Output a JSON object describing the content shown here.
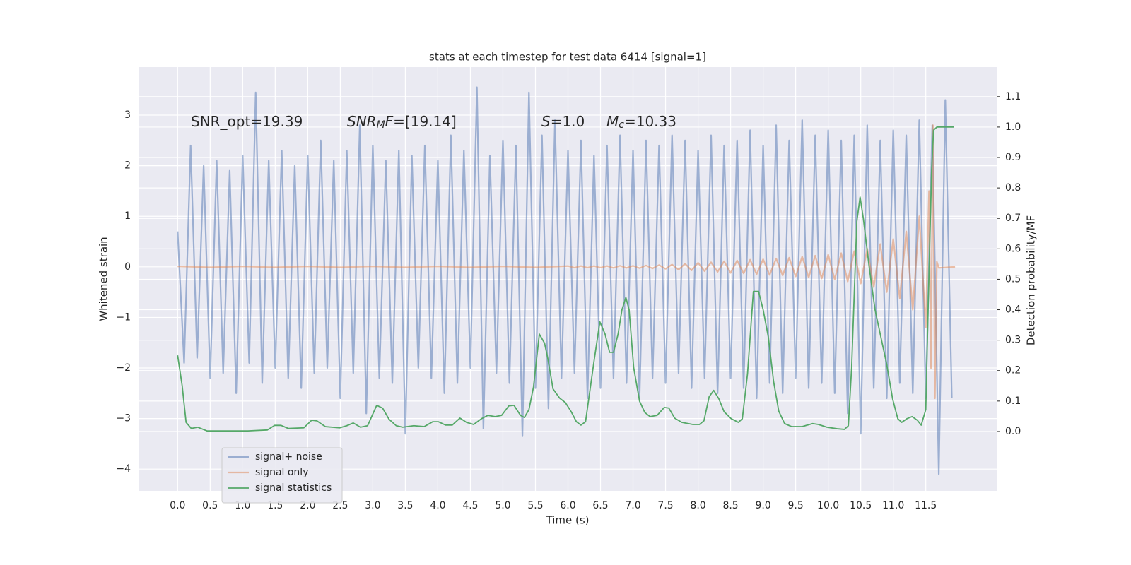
{
  "chart_data": {
    "type": "line",
    "title": "stats at each timestep for test data 6414 [signal=1]",
    "xlabel": "Time (s)",
    "ylabel": "Whitened strain",
    "y2label": "Detection probability/MF",
    "grid": true,
    "legend": "lower left",
    "annotations": [
      [
        {
          "text": "SNR_opt=19.39"
        }
      ],
      [
        {
          "text": "SNR",
          "italic": true
        },
        {
          "text": "M",
          "italic": true,
          "sub": true
        },
        {
          "text": "F",
          "italic": true
        },
        {
          "text": "=[19.14]"
        }
      ],
      [
        {
          "text": "S",
          "italic": true
        },
        {
          "text": "=1.0"
        }
      ],
      [
        {
          "text": "M",
          "italic": true
        },
        {
          "text": "c",
          "italic": true,
          "sub": true
        },
        {
          "text": "=10.33"
        }
      ]
    ],
    "xlim": [
      -0.59,
      12.59
    ],
    "ylim": [
      -4.43,
      3.95
    ],
    "y2lim": [
      -0.195,
      1.197
    ],
    "xticks": [
      {
        "value": 0,
        "label": "0.0"
      },
      {
        "value": 0.5,
        "label": "0.5"
      },
      {
        "value": 1,
        "label": "1.0"
      },
      {
        "value": 1.5,
        "label": "1.5"
      },
      {
        "value": 2,
        "label": "2.0"
      },
      {
        "value": 2.5,
        "label": "2.5"
      },
      {
        "value": 3,
        "label": "3.0"
      },
      {
        "value": 3.5,
        "label": "3.5"
      },
      {
        "value": 4,
        "label": "4.0"
      },
      {
        "value": 4.5,
        "label": "4.5"
      },
      {
        "value": 5,
        "label": "5.0"
      },
      {
        "value": 5.5,
        "label": "5.5"
      },
      {
        "value": 6,
        "label": "6.0"
      },
      {
        "value": 6.5,
        "label": "6.5"
      },
      {
        "value": 7,
        "label": "7.0"
      },
      {
        "value": 7.5,
        "label": "7.5"
      },
      {
        "value": 8,
        "label": "8.0"
      },
      {
        "value": 8.5,
        "label": "8.5"
      },
      {
        "value": 9,
        "label": "9.0"
      },
      {
        "value": 9.5,
        "label": "9.5"
      },
      {
        "value": 10,
        "label": "10.0"
      },
      {
        "value": 10.5,
        "label": "10.5"
      },
      {
        "value": 11,
        "label": "11.0"
      },
      {
        "value": 11.5,
        "label": "11.5"
      }
    ],
    "yticks": [
      {
        "value": -4,
        "label": "−4"
      },
      {
        "value": -3,
        "label": "−3"
      },
      {
        "value": -2,
        "label": "−2"
      },
      {
        "value": -1,
        "label": "−1"
      },
      0,
      1,
      2,
      3
    ],
    "y2ticks": [
      {
        "value": 0,
        "label": "0.0"
      },
      {
        "value": 0.1,
        "label": "0.1"
      },
      {
        "value": 0.2,
        "label": "0.2"
      },
      {
        "value": 0.3,
        "label": "0.3"
      },
      {
        "value": 0.4,
        "label": "0.4"
      },
      {
        "value": 0.5,
        "label": "0.5"
      },
      {
        "value": 0.6,
        "label": "0.6"
      },
      {
        "value": 0.7,
        "label": "0.7"
      },
      {
        "value": 0.8,
        "label": "0.8"
      },
      {
        "value": 0.9,
        "label": "0.9"
      },
      {
        "value": 1,
        "label": "1.0"
      },
      {
        "value": 1.1,
        "label": "1.1"
      }
    ],
    "series": [
      {
        "name": "signal+ noise",
        "color": "#4c72b0",
        "axis": "y",
        "x": [
          0,
          0.1,
          0.2,
          0.3,
          0.4,
          0.5,
          0.6,
          0.7,
          0.8,
          0.9,
          1,
          1.1,
          1.2,
          1.3,
          1.4,
          1.5,
          1.6,
          1.7,
          1.8,
          1.9,
          2,
          2.1,
          2.2,
          2.3,
          2.4,
          2.5,
          2.6,
          2.7,
          2.8,
          2.9,
          3,
          3.1,
          3.2,
          3.3,
          3.4,
          3.5,
          3.6,
          3.7,
          3.8,
          3.9,
          4,
          4.1,
          4.2,
          4.3,
          4.4,
          4.5,
          4.6,
          4.7,
          4.8,
          4.9,
          5,
          5.1,
          5.2,
          5.3,
          5.4,
          5.5,
          5.6,
          5.7,
          5.8,
          5.9,
          6,
          6.1,
          6.2,
          6.3,
          6.4,
          6.5,
          6.6,
          6.7,
          6.8,
          6.9,
          7,
          7.1,
          7.2,
          7.3,
          7.4,
          7.5,
          7.6,
          7.7,
          7.8,
          7.9,
          8,
          8.1,
          8.2,
          8.3,
          8.4,
          8.5,
          8.6,
          8.7,
          8.8,
          8.9,
          9,
          9.1,
          9.2,
          9.3,
          9.4,
          9.5,
          9.6,
          9.7,
          9.8,
          9.9,
          10,
          10.1,
          10.2,
          10.3,
          10.4,
          10.5,
          10.6,
          10.7,
          10.8,
          10.9,
          11,
          11.1,
          11.2,
          11.3,
          11.4,
          11.5,
          11.6,
          11.7,
          11.8,
          11.9
        ],
        "values": [
          0.7,
          -1.9,
          2.4,
          -1.8,
          2.0,
          -2.2,
          2.1,
          -2.1,
          1.9,
          -2.5,
          2.2,
          -1.9,
          3.45,
          -2.3,
          2.1,
          -2.0,
          2.3,
          -2.2,
          2.0,
          -2.4,
          2.2,
          -2.1,
          2.5,
          -2.0,
          2.1,
          -2.6,
          2.3,
          -2.1,
          2.8,
          -2.9,
          2.4,
          -2.2,
          2.1,
          -2.3,
          2.3,
          -3.3,
          2.2,
          -2.0,
          2.4,
          -2.2,
          2.1,
          -2.5,
          2.6,
          -2.3,
          2.3,
          -2.0,
          3.55,
          -3.2,
          2.2,
          -2.1,
          2.5,
          -2.3,
          2.4,
          -3.35,
          3.45,
          -2.4,
          2.6,
          -2.8,
          2.9,
          -2.2,
          2.3,
          -2.1,
          2.5,
          -2.6,
          2.2,
          -2.4,
          2.4,
          -2.2,
          2.6,
          -2.3,
          2.3,
          -2.6,
          2.5,
          -2.2,
          2.4,
          -2.3,
          2.6,
          -2.1,
          2.5,
          -2.4,
          2.3,
          -2.2,
          2.6,
          -2.5,
          2.4,
          -2.2,
          2.5,
          -2.4,
          2.7,
          -2.6,
          2.4,
          -2.3,
          2.8,
          -2.5,
          2.5,
          -2.2,
          2.9,
          -2.4,
          2.6,
          -2.3,
          2.7,
          -2.5,
          2.5,
          -2.9,
          2.6,
          -3.3,
          2.8,
          -2.4,
          2.5,
          -2.6,
          2.7,
          -2.3,
          2.6,
          -2.5,
          2.9,
          -2.6,
          2.8,
          -4.1,
          3.3,
          -2.6
        ]
      },
      {
        "name": "signal only",
        "color": "#dd8452",
        "axis": "y",
        "x": [
          0,
          0.5,
          1,
          1.5,
          2,
          2.5,
          3,
          3.5,
          4,
          4.5,
          5,
          5.5,
          6,
          6.1,
          6.2,
          6.3,
          6.4,
          6.5,
          6.6,
          6.7,
          6.8,
          6.9,
          7,
          7.1,
          7.2,
          7.3,
          7.4,
          7.5,
          7.6,
          7.7,
          7.8,
          7.9,
          8,
          8.1,
          8.2,
          8.3,
          8.4,
          8.5,
          8.6,
          8.7,
          8.8,
          8.9,
          9,
          9.1,
          9.2,
          9.3,
          9.4,
          9.5,
          9.6,
          9.7,
          9.8,
          9.9,
          10,
          10.1,
          10.2,
          10.3,
          10.4,
          10.5,
          10.6,
          10.7,
          10.8,
          10.9,
          11,
          11.1,
          11.2,
          11.3,
          11.4,
          11.5,
          11.55,
          11.58,
          11.61,
          11.64,
          11.67,
          11.7,
          11.95
        ],
        "values": [
          0.01,
          -0.01,
          0.01,
          -0.01,
          0.01,
          -0.01,
          0.01,
          -0.01,
          0.01,
          -0.01,
          0.01,
          -0.01,
          0.015,
          -0.015,
          0.015,
          -0.015,
          0.015,
          -0.015,
          0.015,
          -0.02,
          0.02,
          -0.02,
          0.02,
          -0.025,
          0.025,
          -0.03,
          0.035,
          -0.04,
          0.045,
          -0.055,
          0.06,
          -0.07,
          0.08,
          -0.085,
          0.09,
          -0.1,
          0.11,
          -0.12,
          0.125,
          -0.13,
          0.14,
          -0.145,
          0.15,
          -0.16,
          0.165,
          -0.17,
          0.18,
          -0.19,
          0.2,
          -0.21,
          0.22,
          -0.23,
          0.24,
          -0.25,
          0.27,
          -0.29,
          0.31,
          -0.33,
          0.36,
          -0.4,
          0.45,
          -0.5,
          0.55,
          -0.62,
          0.7,
          -0.85,
          1.0,
          -1.2,
          1.5,
          -2.0,
          2.8,
          -2.6,
          0.1,
          -0.02,
          0
        ]
      },
      {
        "name": "signal statistics",
        "color": "#55a868",
        "axis": "y2",
        "x": [
          0,
          0.07,
          0.13,
          0.21,
          0.31,
          0.45,
          0.75,
          1.08,
          1.38,
          1.49,
          1.59,
          1.7,
          1.94,
          2.06,
          2.14,
          2.27,
          2.49,
          2.6,
          2.7,
          2.81,
          2.92,
          3.06,
          3.15,
          3.25,
          3.36,
          3.46,
          3.63,
          3.79,
          3.92,
          4.01,
          4.12,
          4.22,
          4.34,
          4.44,
          4.55,
          4.67,
          4.77,
          4.88,
          4.98,
          5.09,
          5.17,
          5.27,
          5.33,
          5.4,
          5.47,
          5.56,
          5.64,
          5.69,
          5.77,
          5.87,
          5.96,
          6.05,
          6.13,
          6.2,
          6.27,
          6.4,
          6.49,
          6.57,
          6.64,
          6.7,
          6.77,
          6.83,
          6.89,
          6.94,
          7.01,
          7.1,
          7.18,
          7.26,
          7.37,
          7.48,
          7.55,
          7.64,
          7.75,
          7.92,
          8.02,
          8.09,
          8.17,
          8.24,
          8.32,
          8.4,
          8.51,
          8.62,
          8.68,
          8.76,
          8.85,
          8.93,
          9,
          9.08,
          9.16,
          9.24,
          9.33,
          9.44,
          9.6,
          9.76,
          9.85,
          9.98,
          10.14,
          10.25,
          10.31,
          10.36,
          10.44,
          10.49,
          10.54,
          10.63,
          10.72,
          10.82,
          10.9,
          10.99,
          11.07,
          11.13,
          11.21,
          11.29,
          11.37,
          11.43,
          11.5,
          11.54,
          11.59,
          11.62,
          11.67,
          11.93
        ],
        "values": [
          0.25,
          0.15,
          0.03,
          0.01,
          0.014,
          0.002,
          0.002,
          0.002,
          0.005,
          0.02,
          0.02,
          0.01,
          0.012,
          0.037,
          0.035,
          0.016,
          0.012,
          0.019,
          0.028,
          0.014,
          0.019,
          0.086,
          0.077,
          0.04,
          0.019,
          0.014,
          0.019,
          0.016,
          0.032,
          0.032,
          0.021,
          0.021,
          0.044,
          0.03,
          0.023,
          0.042,
          0.053,
          0.049,
          0.053,
          0.084,
          0.086,
          0.053,
          0.046,
          0.072,
          0.146,
          0.32,
          0.29,
          0.24,
          0.14,
          0.11,
          0.095,
          0.065,
          0.032,
          0.021,
          0.032,
          0.23,
          0.36,
          0.32,
          0.26,
          0.26,
          0.32,
          0.4,
          0.44,
          0.4,
          0.21,
          0.1,
          0.063,
          0.049,
          0.053,
          0.079,
          0.077,
          0.044,
          0.03,
          0.023,
          0.023,
          0.035,
          0.114,
          0.135,
          0.107,
          0.065,
          0.042,
          0.03,
          0.042,
          0.19,
          0.46,
          0.46,
          0.4,
          0.31,
          0.165,
          0.067,
          0.026,
          0.016,
          0.016,
          0.026,
          0.023,
          0.014,
          0.009,
          0.007,
          0.019,
          0.21,
          0.69,
          0.77,
          0.7,
          0.54,
          0.4,
          0.3,
          0.22,
          0.107,
          0.042,
          0.03,
          0.042,
          0.049,
          0.037,
          0.021,
          0.072,
          0.44,
          0.86,
          0.99,
          1.0,
          1.0
        ]
      }
    ]
  }
}
